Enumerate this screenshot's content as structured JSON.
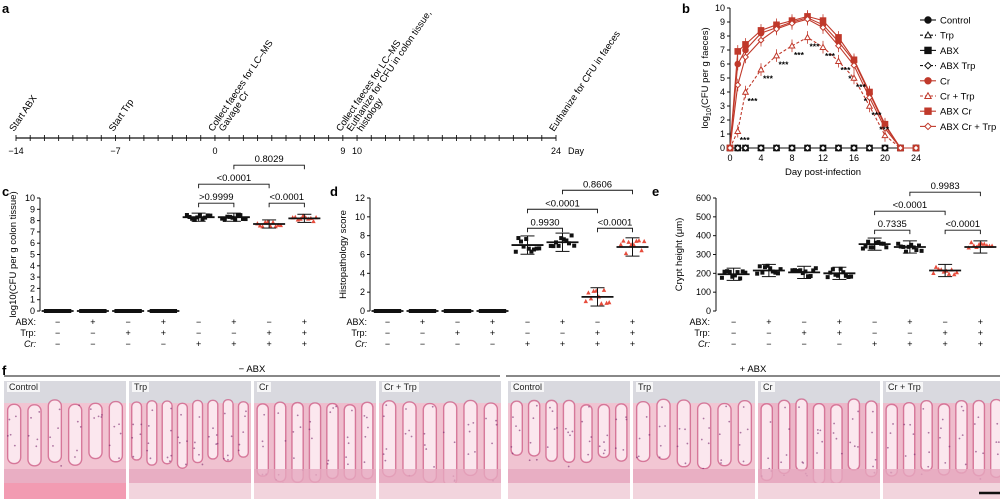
{
  "panel_a": {
    "letter": "a",
    "day_unit": "Day",
    "events": [
      {
        "day": -14,
        "lines": [
          "Start ABX"
        ]
      },
      {
        "day": -7,
        "lines": [
          "Start Trp"
        ]
      },
      {
        "day": 0,
        "lines": [
          "Collect faeces for LC–MS",
          "Gavage Cr"
        ]
      },
      {
        "day": 9,
        "lines": [
          "Collect faeces for LC–MS",
          "Euthanize for CFU in colon tissue,",
          "histology"
        ]
      },
      {
        "day": 24,
        "lines": [
          "Euthanize for CFU in faeces"
        ]
      }
    ],
    "tick_labels": [
      {
        "day": -14,
        "text": "−14"
      },
      {
        "day": -7,
        "text": "−7"
      },
      {
        "day": 0,
        "text": "0"
      },
      {
        "day": 9,
        "text": "9"
      },
      {
        "day": 10,
        "text": "10"
      },
      {
        "day": 24,
        "text": "24"
      }
    ]
  },
  "chart_data": [
    {
      "panel": "b",
      "type": "line",
      "xlabel": "Day post-infection",
      "ylabel": "log10(CFU per g faeces)",
      "xlim": [
        0,
        24
      ],
      "ylim": [
        0,
        10
      ],
      "xticks": [
        0,
        4,
        8,
        12,
        16,
        20,
        24
      ],
      "yticks": [
        0,
        1,
        2,
        3,
        4,
        5,
        6,
        7,
        8,
        9,
        10
      ],
      "x": [
        0,
        1,
        2,
        4,
        6,
        8,
        10,
        12,
        14,
        16,
        18,
        20,
        22,
        24
      ],
      "legend_position": "right",
      "series": [
        {
          "name": "Control",
          "color": "#111111",
          "marker": "circle-filled",
          "dash": false,
          "values": [
            0,
            0,
            0,
            0,
            0,
            0,
            0,
            0,
            0,
            0,
            0,
            0,
            0,
            0
          ]
        },
        {
          "name": "Trp",
          "color": "#111111",
          "marker": "triangle-open",
          "dash": true,
          "values": [
            0,
            0,
            0,
            0,
            0,
            0,
            0,
            0,
            0,
            0,
            0,
            0,
            0,
            0
          ]
        },
        {
          "name": "ABX",
          "color": "#111111",
          "marker": "square-filled",
          "dash": false,
          "values": [
            0,
            0,
            0,
            0,
            0,
            0,
            0,
            0,
            0,
            0,
            0,
            0,
            0,
            0
          ]
        },
        {
          "name": "ABX Trp",
          "color": "#111111",
          "marker": "diamond-open",
          "dash": true,
          "values": [
            0,
            0,
            0,
            0,
            0,
            0,
            0,
            0,
            0,
            0,
            0,
            0,
            0,
            0
          ]
        },
        {
          "name": "Cr",
          "color": "#c0392b",
          "marker": "circle-filled",
          "dash": false,
          "values": [
            0,
            6.0,
            7.0,
            8.2,
            8.6,
            9.0,
            9.3,
            8.8,
            7.6,
            6.2,
            3.9,
            1.6,
            0,
            0
          ]
        },
        {
          "name": "Cr + Trp",
          "color": "#c0392b",
          "marker": "triangle-open",
          "dash": true,
          "values": [
            0,
            1.2,
            4.0,
            5.6,
            6.6,
            7.3,
            7.9,
            7.2,
            6.2,
            5.0,
            3.0,
            0.9,
            0,
            0
          ]
        },
        {
          "name": "ABX Cr",
          "color": "#c0392b",
          "marker": "square-filled",
          "dash": false,
          "values": [
            0,
            6.9,
            7.4,
            8.4,
            8.8,
            9.1,
            9.4,
            9.1,
            7.9,
            6.3,
            4.0,
            1.7,
            0,
            0
          ]
        },
        {
          "name": "ABX Cr + Trp",
          "color": "#c0392b",
          "marker": "diamond-open",
          "dash": false,
          "values": [
            0,
            4.5,
            6.5,
            7.7,
            8.5,
            8.9,
            9.2,
            8.6,
            7.3,
            5.9,
            3.6,
            1.4,
            0,
            0
          ]
        }
      ],
      "annotations": [
        "***",
        "***",
        "***",
        "***",
        "***",
        "***",
        "***",
        "***",
        "*",
        "***",
        "*",
        "***",
        "***"
      ]
    },
    {
      "panel": "c",
      "type": "scatter",
      "ylabel": "log10(CFU per g colon tissue)",
      "ylim": [
        0,
        10
      ],
      "yticks": [
        0,
        1,
        2,
        3,
        4,
        5,
        6,
        7,
        8,
        9,
        10
      ],
      "groups": [
        {
          "abx": "−",
          "trp": "−",
          "cr": "−",
          "mean": 0,
          "color": "#111111"
        },
        {
          "abx": "+",
          "trp": "−",
          "cr": "−",
          "mean": 0,
          "color": "#111111"
        },
        {
          "abx": "−",
          "trp": "+",
          "cr": "−",
          "mean": 0,
          "color": "#111111"
        },
        {
          "abx": "+",
          "trp": "+",
          "cr": "−",
          "mean": 0,
          "color": "#111111"
        },
        {
          "abx": "−",
          "trp": "−",
          "cr": "+",
          "mean": 8.3,
          "color": "#111111"
        },
        {
          "abx": "+",
          "trp": "−",
          "cr": "+",
          "mean": 8.3,
          "color": "#111111"
        },
        {
          "abx": "−",
          "trp": "+",
          "cr": "+",
          "mean": 7.7,
          "color": "#c0392b"
        },
        {
          "abx": "+",
          "trp": "+",
          "cr": "+",
          "mean": 8.2,
          "color": "#c0392b"
        }
      ],
      "comparisons": [
        {
          "from": 5,
          "to": 6,
          "label": ">0.9999",
          "level": 0
        },
        {
          "from": 7,
          "to": 8,
          "label": "<0.0001",
          "level": 0
        },
        {
          "from": 5,
          "to": 7,
          "label": "<0.0001",
          "level": 1
        },
        {
          "from": 6,
          "to": 8,
          "label": "0.8029",
          "level": 2
        }
      ]
    },
    {
      "panel": "d",
      "type": "scatter",
      "ylabel": "Histopathology score",
      "ylim": [
        0,
        12
      ],
      "yticks": [
        0,
        2,
        4,
        6,
        8,
        10,
        12
      ],
      "groups": [
        {
          "abx": "−",
          "trp": "−",
          "cr": "−",
          "mean": 0,
          "color": "#111111"
        },
        {
          "abx": "+",
          "trp": "−",
          "cr": "−",
          "mean": 0,
          "color": "#111111"
        },
        {
          "abx": "−",
          "trp": "+",
          "cr": "−",
          "mean": 0,
          "color": "#111111"
        },
        {
          "abx": "+",
          "trp": "+",
          "cr": "−",
          "mean": 0,
          "color": "#111111"
        },
        {
          "abx": "−",
          "trp": "−",
          "cr": "+",
          "mean": 7.0,
          "color": "#111111"
        },
        {
          "abx": "+",
          "trp": "−",
          "cr": "+",
          "mean": 7.3,
          "color": "#111111"
        },
        {
          "abx": "−",
          "trp": "+",
          "cr": "+",
          "mean": 1.5,
          "color": "#c0392b"
        },
        {
          "abx": "+",
          "trp": "+",
          "cr": "+",
          "mean": 6.8,
          "color": "#c0392b"
        }
      ],
      "comparisons": [
        {
          "from": 5,
          "to": 6,
          "label": "0.9930",
          "level": 0
        },
        {
          "from": 7,
          "to": 8,
          "label": "<0.0001",
          "level": 0
        },
        {
          "from": 5,
          "to": 7,
          "label": "<0.0001",
          "level": 1
        },
        {
          "from": 6,
          "to": 8,
          "label": "0.8606",
          "level": 2
        }
      ]
    },
    {
      "panel": "e",
      "type": "scatter",
      "ylabel": "Crypt height (μm)",
      "ylim": [
        0,
        600
      ],
      "yticks": [
        0,
        100,
        200,
        300,
        400,
        500,
        600
      ],
      "groups": [
        {
          "abx": "−",
          "trp": "−",
          "cr": "−",
          "mean": 195,
          "color": "#111111"
        },
        {
          "abx": "+",
          "trp": "−",
          "cr": "−",
          "mean": 215,
          "color": "#111111"
        },
        {
          "abx": "−",
          "trp": "+",
          "cr": "−",
          "mean": 205,
          "color": "#111111"
        },
        {
          "abx": "+",
          "trp": "+",
          "cr": "−",
          "mean": 200,
          "color": "#111111"
        },
        {
          "abx": "−",
          "trp": "−",
          "cr": "+",
          "mean": 355,
          "color": "#111111"
        },
        {
          "abx": "+",
          "trp": "−",
          "cr": "+",
          "mean": 340,
          "color": "#111111"
        },
        {
          "abx": "−",
          "trp": "+",
          "cr": "+",
          "mean": 215,
          "color": "#c0392b"
        },
        {
          "abx": "+",
          "trp": "+",
          "cr": "+",
          "mean": 340,
          "color": "#c0392b"
        }
      ],
      "comparisons": [
        {
          "from": 5,
          "to": 6,
          "label": "0.7335",
          "level": 0
        },
        {
          "from": 7,
          "to": 8,
          "label": "<0.0001",
          "level": 0
        },
        {
          "from": 5,
          "to": 7,
          "label": "<0.0001",
          "level": 1
        },
        {
          "from": 6,
          "to": 8,
          "label": "0.9983",
          "level": 2
        }
      ]
    }
  ],
  "factor_labels": {
    "abx": "ABX:",
    "trp": "Trp:",
    "cr": "Cr:"
  },
  "panel_letters": {
    "b": "b",
    "c": "c",
    "d": "d",
    "e": "e",
    "f": "f"
  },
  "panel_f": {
    "groups": [
      {
        "label": "− ABX"
      },
      {
        "label": "+ ABX"
      }
    ],
    "images": [
      {
        "label": "Control",
        "tone": "#f2c4d2"
      },
      {
        "label": "Trp",
        "tone": "#f0c2d0"
      },
      {
        "label": "Cr",
        "tone": "#eebdcd"
      },
      {
        "label": "Cr + Trp",
        "tone": "#f1c3d1"
      },
      {
        "label": "Control",
        "tone": "#f0c3d1"
      },
      {
        "label": "Trp",
        "tone": "#f2c6d3"
      },
      {
        "label": "Cr",
        "tone": "#ecb6c8"
      },
      {
        "label": "Cr + Trp",
        "tone": "#eebccc"
      }
    ]
  }
}
